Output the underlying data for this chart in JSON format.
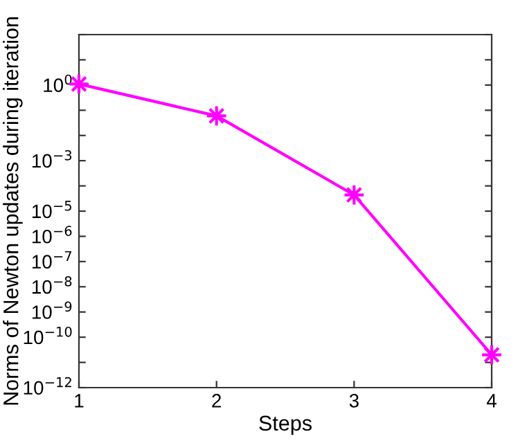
{
  "chart_data": {
    "type": "line",
    "xlabel": "Steps",
    "ylabel": "Norms of Newton updates during iteration",
    "x": [
      1,
      2,
      3,
      4
    ],
    "series": [
      {
        "color": "#ff00ff",
        "values": [
          1.1,
          0.06,
          4.4e-05,
          2e-11
        ]
      }
    ],
    "log": "y",
    "marker": "cross",
    "line_style": "solid",
    "grid": false,
    "legend": false,
    "xlim": [
      1,
      4
    ],
    "xticks": [
      1,
      2,
      3,
      4
    ],
    "ylim": [
      1e-12,
      100
    ],
    "yticks": [
      {
        "value": 1e-12,
        "label": "10$^{−12}$"
      },
      {
        "value": 1e-11,
        "label": null
      },
      {
        "value": 1e-10,
        "label": "10$^{−10}$"
      },
      {
        "value": 1e-09,
        "label": "10$^{−9}$"
      },
      {
        "value": 1e-08,
        "label": "10$^{−8}$"
      },
      {
        "value": 1e-07,
        "label": "10$^{−7}$"
      },
      {
        "value": 1e-06,
        "label": "10$^{−6}$"
      },
      {
        "value": 1e-05,
        "label": "10$^{−5}$"
      },
      {
        "value": 0.0001,
        "label": null
      },
      {
        "value": 0.001,
        "label": "10$^{−3}$"
      },
      {
        "value": 0.01,
        "label": null
      },
      {
        "value": 0.1,
        "label": null
      },
      {
        "value": 1,
        "label": "10$^{0}$"
      },
      {
        "value": 10,
        "label": null
      },
      {
        "value": 100,
        "label": null
      }
    ]
  }
}
